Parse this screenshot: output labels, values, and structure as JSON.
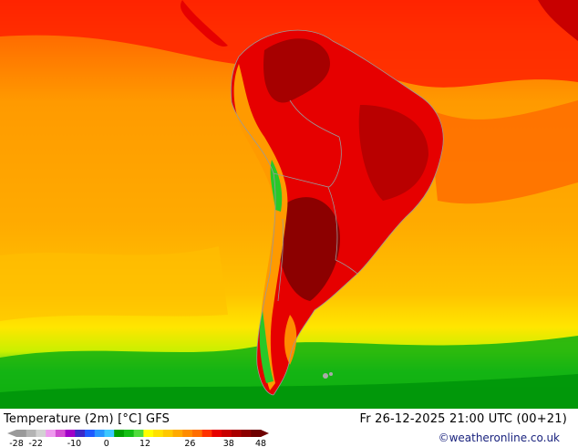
{
  "map": {
    "title": "Temperature (2m) [°C] GFS",
    "valid_time": "Fr 26-12-2025 21:00 UTC (00+21)",
    "credit": "©weatheronline.co.uk",
    "region": "South America"
  },
  "legend": {
    "ticks": [
      "-28",
      "-22",
      "-10",
      "0",
      "12",
      "26",
      "38",
      "48"
    ],
    "colors": [
      "#9a9a9a",
      "#b4b4b4",
      "#d2d2d2",
      "#ee9aee",
      "#d24bd2",
      "#a000c8",
      "#3c28c8",
      "#1e5aff",
      "#2897ff",
      "#3cc8ff",
      "#00a000",
      "#14be14",
      "#50dc3c",
      "#ffff00",
      "#ffe100",
      "#ffc800",
      "#ffaa00",
      "#ff8c00",
      "#ff6e00",
      "#ff3200",
      "#e60000",
      "#c80000",
      "#aa0000",
      "#8c0000",
      "#6e0000"
    ]
  }
}
